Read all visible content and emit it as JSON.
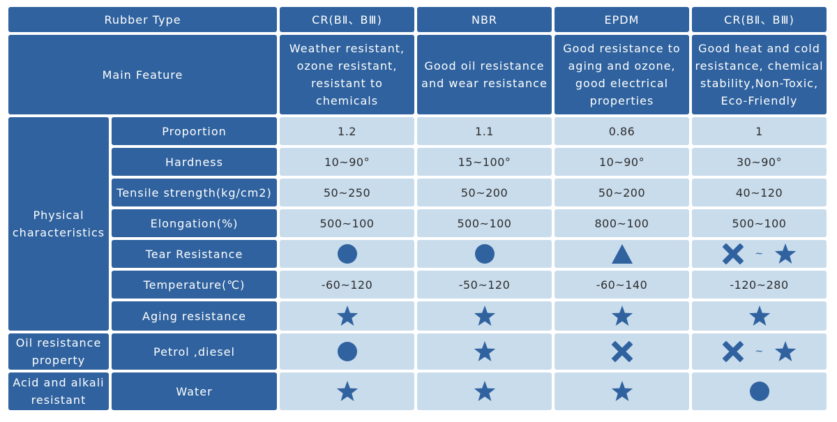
{
  "header": {
    "rubber_type": "Rubber Type",
    "columns": [
      "CR(BⅡ、BⅢ)",
      "NBR",
      "EPDM",
      "CR(BⅡ、BⅢ)"
    ]
  },
  "main_feature": {
    "label": "Main Feature",
    "values": [
      "Weather resistant, ozone resistant, resistant to chemicals",
      "Good oil resistance and wear resistance",
      "Good resistance to aging and ozone, good electrical properties",
      "Good heat and cold resistance, chemical stability,Non-Toxic, Eco-Friendly"
    ]
  },
  "groups": {
    "physical": "Physical characteristics",
    "oil": "Oil resistance property",
    "acid": "Acid and alkali resistant"
  },
  "rows": {
    "proportion": {
      "label": "Proportion",
      "values": [
        "1.2",
        "1.1",
        "0.86",
        "1"
      ]
    },
    "hardness": {
      "label": "Hardness",
      "values": [
        "10~90°",
        "15~100°",
        "10~90°",
        "30~90°"
      ]
    },
    "tensile": {
      "label": "Tensile strength(kg/cm2)",
      "values": [
        "50~250",
        "50~200",
        "50~200",
        "40~120"
      ]
    },
    "elongation": {
      "label": "Elongation(%)",
      "values": [
        "500~100",
        "500~100",
        "800~100",
        "500~100"
      ]
    },
    "tear": {
      "label": "Tear Resistance",
      "symbols": [
        "circle",
        "circle",
        "triangle",
        "cross-tilde-star"
      ]
    },
    "temperature": {
      "label": "Temperature(℃)",
      "values": [
        "-60~120",
        "-50~120",
        "-60~140",
        "-120~280"
      ]
    },
    "aging": {
      "label": "Aging resistance",
      "symbols": [
        "star",
        "star",
        "star",
        "star"
      ]
    },
    "petrol": {
      "label": "Petrol ,diesel",
      "symbols": [
        "circle",
        "star",
        "cross",
        "cross-tilde-star"
      ]
    },
    "water": {
      "label": "Water",
      "symbols": [
        "star",
        "star",
        "star",
        "circle"
      ]
    }
  },
  "tilde": "~",
  "colors": {
    "header_bg": "#2f629e",
    "cell_bg": "#c9dcec",
    "symbol": "#2f629e"
  }
}
